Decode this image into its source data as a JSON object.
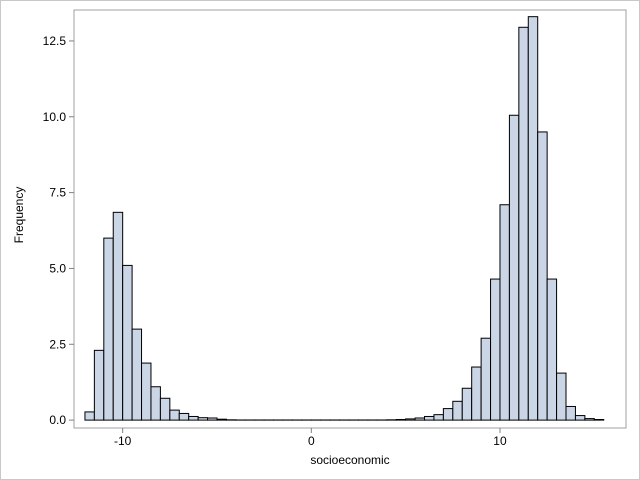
{
  "chart_data": {
    "type": "bar",
    "title": "",
    "xlabel": "socioeconomic",
    "ylabel": "Frequency",
    "xlim": [
      -12.58,
      16.68
    ],
    "ylim": [
      -0.26,
      13.52
    ],
    "bin_width": 0.5,
    "xticks": [
      {
        "v": -10,
        "label": "-10"
      },
      {
        "v": 0,
        "label": "0"
      },
      {
        "v": 10,
        "label": "10"
      }
    ],
    "yticks": [
      {
        "v": 0,
        "label": "0.0"
      },
      {
        "v": 2.5,
        "label": "2.5"
      },
      {
        "v": 5,
        "label": "5.0"
      },
      {
        "v": 7.5,
        "label": "7.5"
      },
      {
        "v": 10,
        "label": "10.0"
      },
      {
        "v": 12.5,
        "label": "12.5"
      }
    ],
    "bins_start": -12,
    "values": [
      0.27,
      2.3,
      6.0,
      6.85,
      5.1,
      3.0,
      1.88,
      1.1,
      0.72,
      0.33,
      0.22,
      0.12,
      0.08,
      0.07,
      0.03,
      0.01,
      0.005,
      0.005,
      0.005,
      0.005,
      0.005,
      0.005,
      0.005,
      0.005,
      0.005,
      0.005,
      0.005,
      0.005,
      0.005,
      0.005,
      0.005,
      0.005,
      0.01,
      0.02,
      0.04,
      0.07,
      0.12,
      0.18,
      0.38,
      0.62,
      1.05,
      1.75,
      2.7,
      4.65,
      7.1,
      10.05,
      12.95,
      13.3,
      9.5,
      4.65,
      1.55,
      0.45,
      0.15,
      0.05,
      0.02
    ],
    "fill": "#cad5e5",
    "stroke": "#000000",
    "grid": false
  }
}
